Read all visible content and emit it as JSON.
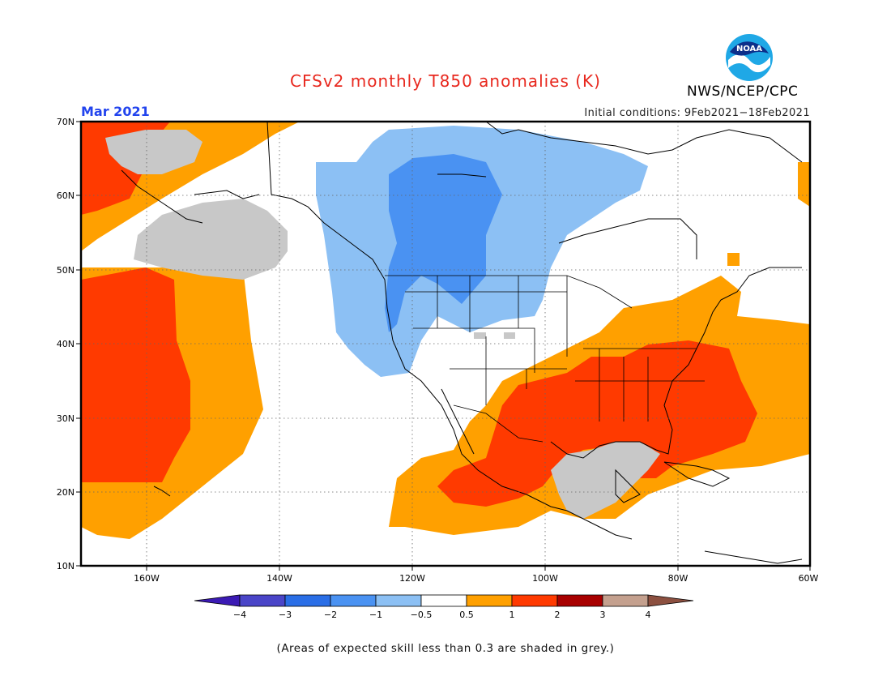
{
  "header": {
    "title": "CFSv2 monthly T850 anomalies (K)",
    "agency": "NWS/NCEP/CPC",
    "logo_text": "NOAA",
    "month": "Mar 2021",
    "initial_conditions": "Initial conditions: 9Feb2021−18Feb2021"
  },
  "map": {
    "lat_labels": [
      "70N",
      "60N",
      "50N",
      "40N",
      "30N",
      "20N",
      "10N"
    ],
    "lon_labels": [
      "160W",
      "140W",
      "120W",
      "100W",
      "80W",
      "60W"
    ]
  },
  "legend": {
    "tick_labels": [
      "−4",
      "−3",
      "−2",
      "−1",
      "−0.5",
      "0.5",
      "1",
      "2",
      "3",
      "4"
    ],
    "colors": [
      "#3b1ab4",
      "#4a45c8",
      "#2a6ee6",
      "#4a92f2",
      "#8cc0f4",
      "#ffffff",
      "#ffa000",
      "#ff3a00",
      "#a80000",
      "#c4a08e",
      "#8c5040"
    ]
  },
  "footnote": "(Areas of expected skill less than 0.3 are shaded in grey.)"
}
